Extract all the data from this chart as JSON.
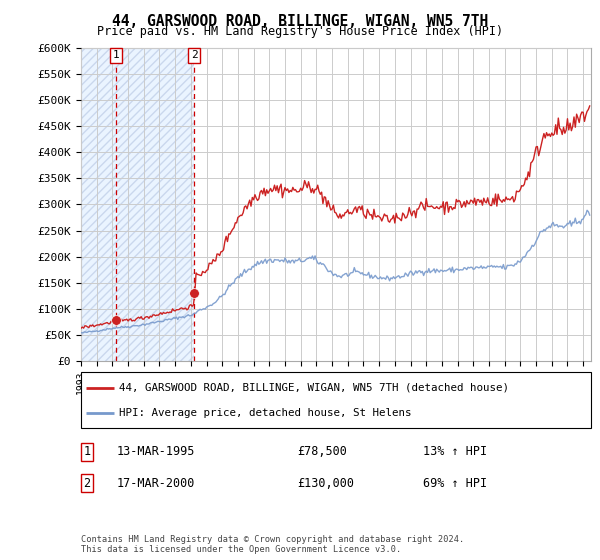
{
  "title": "44, GARSWOOD ROAD, BILLINGE, WIGAN, WN5 7TH",
  "subtitle": "Price paid vs. HM Land Registry's House Price Index (HPI)",
  "legend_line1": "44, GARSWOOD ROAD, BILLINGE, WIGAN, WN5 7TH (detached house)",
  "legend_line2": "HPI: Average price, detached house, St Helens",
  "transaction1_label": "1",
  "transaction1_date": "13-MAR-1995",
  "transaction1_price": "£78,500",
  "transaction1_hpi": "13% ↑ HPI",
  "transaction1_year": 1995.21,
  "transaction1_value": 78500,
  "transaction2_label": "2",
  "transaction2_date": "17-MAR-2000",
  "transaction2_price": "£130,000",
  "transaction2_hpi": "69% ↑ HPI",
  "transaction2_year": 2000.21,
  "transaction2_value": 130000,
  "ylim_min": 0,
  "ylim_max": 600000,
  "ytick_values": [
    0,
    50000,
    100000,
    150000,
    200000,
    250000,
    300000,
    350000,
    400000,
    450000,
    500000,
    550000,
    600000
  ],
  "ytick_labels": [
    "£0",
    "£50K",
    "£100K",
    "£150K",
    "£200K",
    "£250K",
    "£300K",
    "£350K",
    "£400K",
    "£450K",
    "£500K",
    "£550K",
    "£600K"
  ],
  "hpi_color": "#7799cc",
  "price_color": "#cc2222",
  "vline_color": "#cc0000",
  "grid_color": "#cccccc",
  "bg_fill_color": "#ddeeff",
  "footnote": "Contains HM Land Registry data © Crown copyright and database right 2024.\nThis data is licensed under the Open Government Licence v3.0.",
  "xmin": 1993.0,
  "xmax": 2025.5
}
